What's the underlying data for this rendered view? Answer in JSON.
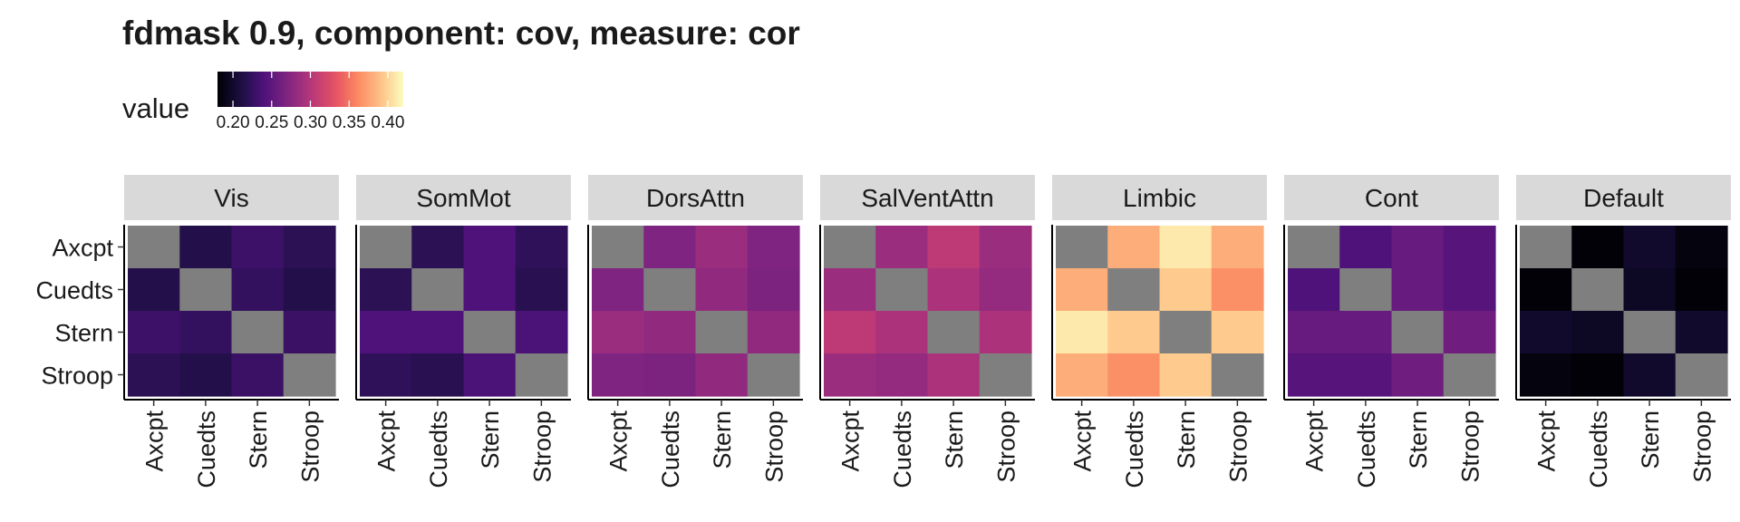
{
  "chart_data": {
    "type": "heatmap",
    "title": "fdmask 0.9, component: cov, measure: cor",
    "legend": {
      "title": "value",
      "position": "top-left",
      "colorscale": "magma",
      "range": [
        0.18,
        0.42
      ],
      "ticks": [
        0.2,
        0.25,
        0.3,
        0.35,
        0.4
      ],
      "tick_labels": [
        "0.20",
        "0.25",
        "0.30",
        "0.35",
        "0.40"
      ]
    },
    "x_categories": [
      "Axcpt",
      "Cuedts",
      "Stern",
      "Stroop"
    ],
    "y_categories": [
      "Axcpt",
      "Cuedts",
      "Stern",
      "Stroop"
    ],
    "na_color": "#7f7f7f",
    "facets": [
      {
        "name": "Vis",
        "values": [
          [
            null,
            0.215,
            0.23,
            0.22
          ],
          [
            0.215,
            null,
            0.225,
            0.215
          ],
          [
            0.23,
            0.225,
            null,
            0.228
          ],
          [
            0.22,
            0.215,
            0.228,
            null
          ]
        ]
      },
      {
        "name": "SomMot",
        "values": [
          [
            null,
            0.22,
            0.24,
            0.222
          ],
          [
            0.22,
            null,
            0.24,
            0.218
          ],
          [
            0.24,
            0.24,
            null,
            0.238
          ],
          [
            0.222,
            0.218,
            0.238,
            null
          ]
        ]
      },
      {
        "name": "DorsAttn",
        "values": [
          [
            null,
            0.27,
            0.285,
            0.27
          ],
          [
            0.27,
            null,
            0.28,
            0.268
          ],
          [
            0.285,
            0.28,
            null,
            0.28
          ],
          [
            0.27,
            0.268,
            0.28,
            null
          ]
        ]
      },
      {
        "name": "SalVentAttn",
        "values": [
          [
            null,
            0.285,
            0.305,
            0.285
          ],
          [
            0.285,
            null,
            0.295,
            0.282
          ],
          [
            0.305,
            0.295,
            null,
            0.295
          ],
          [
            0.285,
            0.282,
            0.295,
            null
          ]
        ]
      },
      {
        "name": "Limbic",
        "values": [
          [
            null,
            0.38,
            0.41,
            0.38
          ],
          [
            0.38,
            null,
            0.395,
            0.365
          ],
          [
            0.41,
            0.395,
            null,
            0.395
          ],
          [
            0.38,
            0.365,
            0.395,
            null
          ]
        ]
      },
      {
        "name": "Cont",
        "values": [
          [
            null,
            0.24,
            0.255,
            0.245
          ],
          [
            0.24,
            null,
            0.255,
            0.245
          ],
          [
            0.255,
            0.255,
            null,
            0.26
          ],
          [
            0.245,
            0.245,
            0.26,
            null
          ]
        ]
      },
      {
        "name": "Default",
        "values": [
          [
            null,
            0.182,
            0.2,
            0.185
          ],
          [
            0.182,
            null,
            0.195,
            0.182
          ],
          [
            0.2,
            0.195,
            null,
            0.2
          ],
          [
            0.185,
            0.182,
            0.2,
            null
          ]
        ]
      }
    ]
  }
}
